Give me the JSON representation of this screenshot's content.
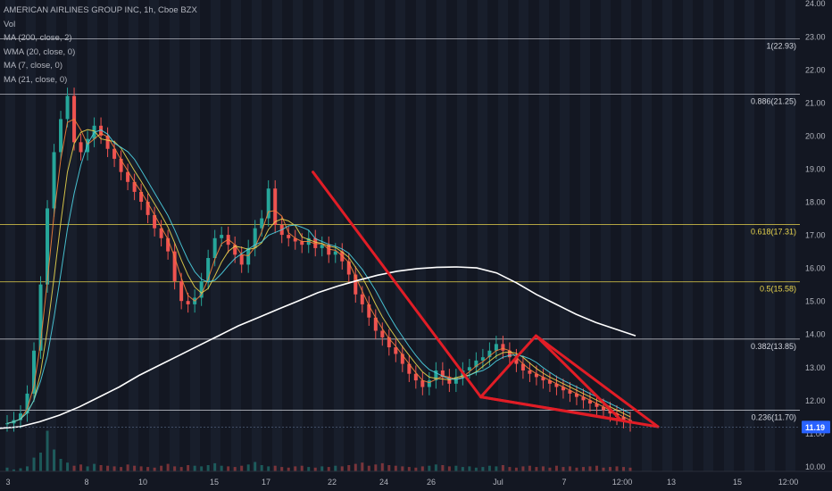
{
  "chart_data": {
    "type": "candlestick",
    "title": "AMERICAN AIRLINES GROUP INC, 1h, Cboe BZX",
    "indicators": [
      "Vol",
      "MA (200, close, 2)",
      "WMA (20, close, 0)",
      "MA (7, close, 0)",
      "MA (21, close, 0)"
    ],
    "y_axis": {
      "range": [
        9.85,
        24.1
      ],
      "ticks": [
        "24.00",
        "23.00",
        "22.00",
        "21.00",
        "20.00",
        "19.00",
        "18.00",
        "17.00",
        "16.00",
        "15.00",
        "14.00",
        "13.00",
        "12.00",
        "11.00",
        "10.00"
      ]
    },
    "x_axis": {
      "ticks": [
        "3",
        "8",
        "10",
        "15",
        "17",
        "22",
        "24",
        "26",
        "Jul",
        "7",
        "12:00",
        "13",
        "15",
        "12:00"
      ]
    },
    "last_price": "11.19",
    "fib_levels": [
      {
        "label": "1(22.93)",
        "value": 22.93,
        "color": "#d1d4dc"
      },
      {
        "label": "0.886(21.25)",
        "value": 21.25,
        "color": "#d1d4dc"
      },
      {
        "label": "0.618(17.31)",
        "value": 17.31,
        "color": "#e8d44d"
      },
      {
        "label": "0.5(15.58)",
        "value": 15.58,
        "color": "#e8d44d"
      },
      {
        "label": "0.382(13.85)",
        "value": 13.85,
        "color": "#d1d4dc"
      },
      {
        "label": "0.236(11.70)",
        "value": 11.7,
        "color": "#d1d4dc"
      }
    ],
    "ma_lines": [
      {
        "name": "MA (200, close, 2)",
        "color": "#ffffff",
        "values": [
          11.15,
          11.2,
          11.35,
          11.55,
          11.8,
          12.1,
          12.4,
          12.75,
          13.05,
          13.35,
          13.65,
          13.95,
          14.25,
          14.5,
          14.75,
          15.0,
          15.25,
          15.45,
          15.62,
          15.78,
          15.9,
          15.98,
          16.02,
          16.03,
          16.0,
          15.85,
          15.55,
          15.2,
          14.9,
          14.6,
          14.35,
          14.15,
          13.95
        ]
      },
      {
        "name": "WMA (20, close, 0)",
        "color": "#e8d44d",
        "values": []
      },
      {
        "name": "MA (7, close, 0)",
        "color": "#f57f3a",
        "values": []
      },
      {
        "name": "MA (21, close, 0)",
        "color": "#4dd0e1",
        "values": []
      }
    ],
    "candles": [
      11.3,
      11.4,
      11.6,
      12.2,
      13.5,
      15.5,
      17.8,
      19.5,
      20.5,
      21.2,
      19.8,
      19.5,
      19.9,
      20.3,
      20.0,
      19.6,
      19.3,
      18.9,
      18.6,
      18.3,
      18.0,
      17.6,
      17.2,
      16.9,
      16.5,
      15.6,
      15.0,
      14.9,
      15.1,
      15.6,
      16.3,
      16.9,
      17.0,
      16.7,
      16.4,
      16.1,
      16.6,
      17.2,
      17.5,
      18.4,
      17.3,
      17.0,
      16.9,
      16.8,
      16.7,
      16.9,
      16.6,
      16.7,
      16.4,
      16.5,
      16.2,
      15.8,
      15.2,
      14.9,
      14.5,
      14.1,
      13.9,
      13.6,
      13.4,
      13.1,
      12.8,
      12.6,
      12.4,
      12.6,
      12.9,
      12.7,
      12.5,
      12.7,
      12.9,
      13.0,
      13.2,
      13.3,
      13.5,
      13.7,
      13.5,
      13.3,
      13.1,
      12.9,
      12.8,
      12.7,
      12.6,
      12.5,
      12.4,
      12.3,
      12.2,
      12.1,
      12.0,
      11.9,
      11.8,
      11.7,
      11.6,
      11.5,
      11.4,
      11.3
    ],
    "volumes": [
      6,
      3,
      5,
      8,
      22,
      30,
      65,
      35,
      20,
      14,
      9,
      11,
      8,
      12,
      10,
      9,
      8,
      7,
      11,
      9,
      8,
      7,
      6,
      9,
      12,
      8,
      7,
      10,
      9,
      8,
      10,
      13,
      9,
      8,
      7,
      9,
      11,
      15,
      10,
      8,
      9,
      7,
      6,
      8,
      9,
      7,
      6,
      8,
      7,
      9,
      8,
      10,
      12,
      14,
      9,
      11,
      13,
      10,
      9,
      8,
      7,
      6,
      8,
      9,
      11,
      10,
      8,
      9,
      7,
      8,
      6,
      7,
      9,
      8,
      10,
      7,
      6,
      8,
      9,
      7,
      8,
      6,
      9,
      7,
      8,
      6,
      7,
      8,
      9,
      6,
      7,
      8,
      7,
      6
    ]
  },
  "trendlines": [
    {
      "from": [
        16.3,
        18.9
      ],
      "to": [
        23.6,
        12.1
      ]
    },
    {
      "from": [
        23.6,
        12.1
      ],
      "to": [
        26.0,
        13.95
      ]
    },
    {
      "from": [
        26.0,
        13.95
      ],
      "to": [
        29.7,
        11.4
      ]
    },
    {
      "from": [
        23.6,
        12.1
      ],
      "to": [
        29.7,
        11.4
      ]
    }
  ],
  "colors": {
    "background": "#131722",
    "up": "#26a69a",
    "down": "#ef5350",
    "trendline": "#e11d26",
    "axis_text": "#b2b5be",
    "last_price_bg": "#2962ff",
    "vgrid": "#1e2433"
  }
}
